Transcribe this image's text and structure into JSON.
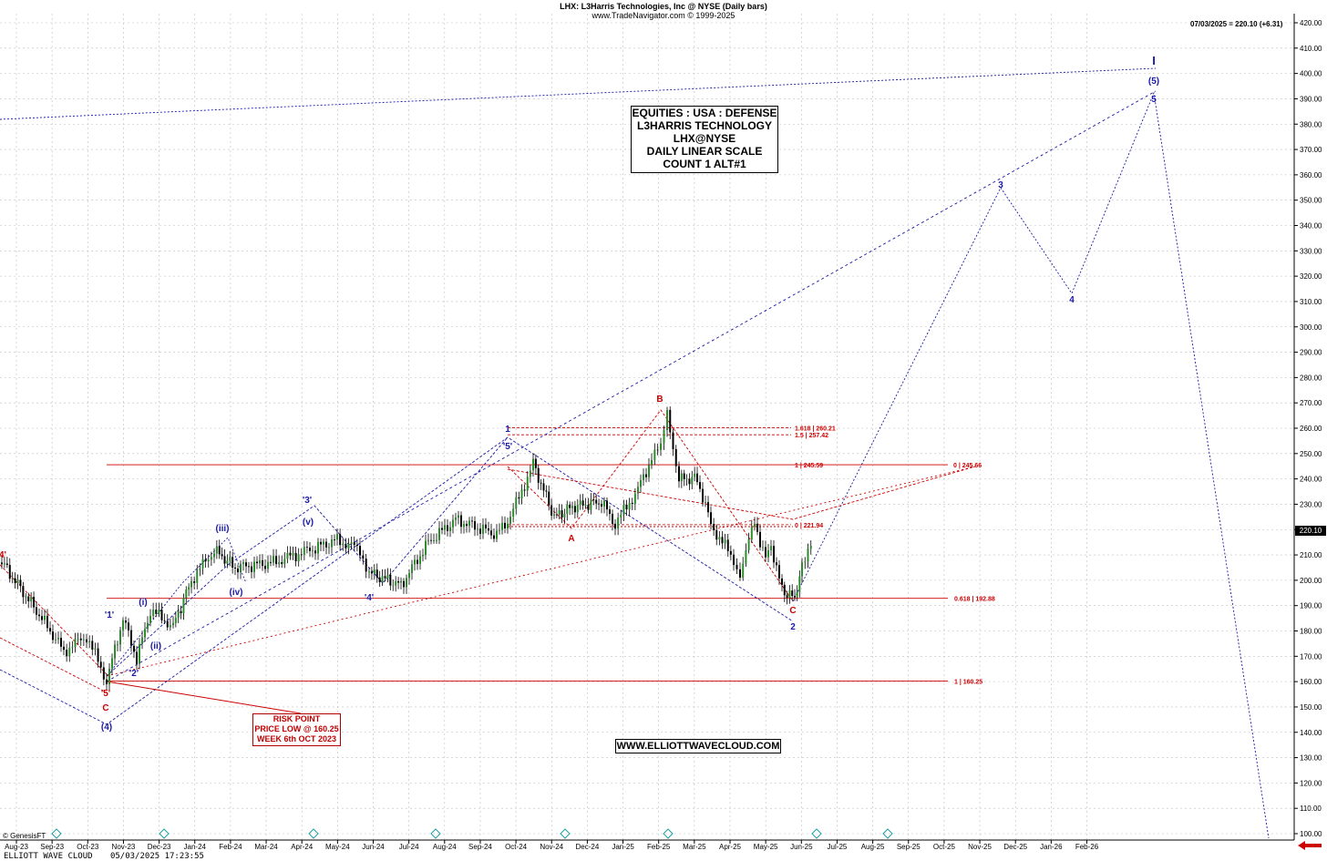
{
  "header": {
    "title": "LHX:  L3Harris Technologies, Inc @ NYSE  (Daily bars)",
    "subtitle": "www.TradeNavigator.com © 1999-2025",
    "last": "07/03/2025 = 220.10 (+6.31)",
    "price_tag": "220.10"
  },
  "info_box": [
    "EQUITIES : USA : DEFENSE",
    "L3HARRIS TECHNOLOGY",
    "LHX@NYSE",
    "DAILY LINEAR SCALE",
    "COUNT 1 ALT#1"
  ],
  "risk_box": [
    "RISK POINT",
    "PRICE LOW @ 160.25",
    "WEEK 6th OCT 2023"
  ],
  "website": "WWW.ELLIOTTWAVECLOUD.COM",
  "footer": {
    "left": "ELLIOTT WAVE CLOUD",
    "datetime": "05/03/2025 17:23:55",
    "copyright": "© GenesisFT"
  },
  "colors": {
    "red": "#cc0000",
    "blue": "#1a1aa6",
    "grid": "#bdbdbd",
    "up": "#000000"
  },
  "chart_data": {
    "type": "line",
    "title": "LHX:  L3Harris Technologies, Inc @ NYSE  (Daily bars)",
    "x_axis": {
      "ticks": [
        "Aug-23",
        "Sep-23",
        "Oct-23",
        "Nov-23",
        "Dec-23",
        "Jan-24",
        "Feb-24",
        "Mar-24",
        "Apr-24",
        "May-24",
        "Jun-24",
        "Jul-24",
        "Aug-24",
        "Sep-24",
        "Oct-24",
        "Nov-24",
        "Dec-24",
        "Jan-25",
        "Feb-25",
        "Mar-25",
        "Apr-25",
        "May-25",
        "Jun-25",
        "Jul-25",
        "Aug-25",
        "Sep-25",
        "Oct-25",
        "Nov-25",
        "Dec-25",
        "Jan-26",
        "Feb-26"
      ]
    },
    "y_axis": {
      "range": [
        100,
        420
      ],
      "ticks": [
        100,
        110,
        120,
        130,
        140,
        150,
        160,
        170,
        180,
        190,
        200,
        210,
        220,
        230,
        240,
        250,
        260,
        270,
        280,
        290,
        300,
        310,
        320,
        330,
        340,
        350,
        360,
        370,
        380,
        390,
        400,
        410,
        420
      ],
      "tick_labels": [
        "100.00",
        "110.00",
        "120.00",
        "130.00",
        "140.00",
        "150.00",
        "160.00",
        "170.00",
        "180.00",
        "190.00",
        "200.00",
        "210.00",
        "220.00",
        "230.00",
        "240.00",
        "250.00",
        "260.00",
        "270.00",
        "280.00",
        "290.00",
        "300.00",
        "310.00",
        "320.00",
        "330.00",
        "340.00",
        "350.00",
        "360.00",
        "370.00",
        "380.00",
        "390.00",
        "400.00",
        "410.00",
        "420.00"
      ]
    },
    "price_series": [
      [
        "Jul-23",
        207
      ],
      [
        "Aug-23",
        188
      ],
      [
        "Sep-23",
        172
      ],
      [
        "Sep-23",
        178
      ],
      [
        "Oct-23",
        160.25
      ],
      [
        "Oct-23",
        185
      ],
      [
        "Oct-23",
        169
      ],
      [
        "Nov-23",
        188
      ],
      [
        "Nov-23",
        182
      ],
      [
        "Dec-23",
        200
      ],
      [
        "Dec-23",
        212
      ],
      [
        "Jan-24",
        205
      ],
      [
        "Jan-24",
        207
      ],
      [
        "Feb-24",
        212
      ],
      [
        "Mar-24",
        216
      ],
      [
        "Mar-24",
        212
      ],
      [
        "Apr-24",
        203
      ],
      [
        "Apr-24",
        198
      ],
      [
        "May-24",
        215
      ],
      [
        "Jun-24",
        224
      ],
      [
        "Jun-24",
        218
      ],
      [
        "Jul-24",
        225
      ],
      [
        "Jul-24",
        246
      ],
      [
        "Aug-24",
        225
      ],
      [
        "Aug-24",
        229
      ],
      [
        "Sep-24",
        231
      ],
      [
        "Sep-24",
        222
      ],
      [
        "Oct-24",
        236
      ],
      [
        "Oct-24",
        248
      ],
      [
        "Nov-24",
        252
      ],
      [
        "Nov-24",
        266
      ],
      [
        "Nov-24",
        240
      ],
      [
        "Dec-24",
        240
      ],
      [
        "Dec-24",
        222
      ],
      [
        "Jan-25",
        208
      ],
      [
        "Jan-25",
        203
      ],
      [
        "Jan-25",
        223
      ],
      [
        "Jan-25",
        208
      ],
      [
        "Feb-25",
        214
      ],
      [
        "Feb-25",
        196
      ],
      [
        "Feb-25",
        193
      ],
      [
        "Mar-25",
        205
      ],
      [
        "Mar-25",
        220.1
      ]
    ],
    "projection_path": [
      [
        "Feb-25",
        192.88
      ],
      [
        "Jul-25",
        353
      ],
      [
        "Sep-25",
        310
      ],
      [
        "Nov-25",
        393
      ],
      [
        "Feb-26",
        100
      ]
    ],
    "horizontal_levels": [
      {
        "label": "1.618 | 260.21",
        "value": 260.21
      },
      {
        "label": "1.5 | 257.42",
        "value": 257.42
      },
      {
        "label": "1 | 245.59",
        "value": 245.59
      },
      {
        "label": "0 | 245.66",
        "value": 245.66
      },
      {
        "label": "0 | 221.94",
        "value": 221.94
      },
      {
        "label": "0.618 | 192.88",
        "value": 192.88
      },
      {
        "label": "1 | 160.25",
        "value": 160.25
      }
    ],
    "wave_labels": [
      {
        "text": "4'",
        "color": "red",
        "x": "Jul-23",
        "y": 210
      },
      {
        "text": "'1'",
        "color": "blue",
        "x": "Oct-23",
        "y": 185
      },
      {
        "text": "'5'",
        "color": "red",
        "x": "Oct-23",
        "y": 155
      },
      {
        "text": "C",
        "color": "red",
        "x": "Oct-23",
        "y": 150
      },
      {
        "text": "(4)",
        "color": "blue",
        "x": "Oct-23",
        "y": 143
      },
      {
        "text": "'2'",
        "color": "blue",
        "x": "Oct-23",
        "y": 163
      },
      {
        "text": "(i)",
        "color": "blue",
        "x": "Nov-23",
        "y": 190
      },
      {
        "text": "(ii)",
        "color": "blue",
        "x": "Nov-23",
        "y": 175
      },
      {
        "text": "(iii)",
        "color": "blue",
        "x": "Dec-23",
        "y": 214
      },
      {
        "text": "(iv)",
        "color": "blue",
        "x": "Jan-24",
        "y": 197
      },
      {
        "text": "'3'",
        "color": "blue",
        "x": "Mar-24",
        "y": 230
      },
      {
        "text": "(v)",
        "color": "blue",
        "x": "Mar-24",
        "y": 224
      },
      {
        "text": "'4'",
        "color": "blue",
        "x": "Apr-24",
        "y": 196
      },
      {
        "text": "1",
        "color": "blue",
        "x": "Jul-24",
        "y": 261
      },
      {
        "text": "'5'",
        "color": "blue",
        "x": "Jul-24",
        "y": 254
      },
      {
        "text": "A",
        "color": "red",
        "x": "Sep-24",
        "y": 216
      },
      {
        "text": "B",
        "color": "red",
        "x": "Nov-24",
        "y": 269
      },
      {
        "text": "C",
        "color": "red",
        "x": "Feb-25",
        "y": 189
      },
      {
        "text": "2",
        "color": "blue",
        "x": "Feb-25",
        "y": 184
      },
      {
        "text": "3",
        "color": "blue",
        "x": "Jul-25",
        "y": 355
      },
      {
        "text": "4",
        "color": "blue",
        "x": "Sep-25",
        "y": 309
      },
      {
        "text": "5",
        "color": "blue",
        "x": "Nov-25",
        "y": 391
      },
      {
        "text": "(5)",
        "color": "blue",
        "x": "Nov-25",
        "y": 396
      },
      {
        "text": "I",
        "color": "blue",
        "x": "Nov-25",
        "y": 404
      }
    ]
  }
}
